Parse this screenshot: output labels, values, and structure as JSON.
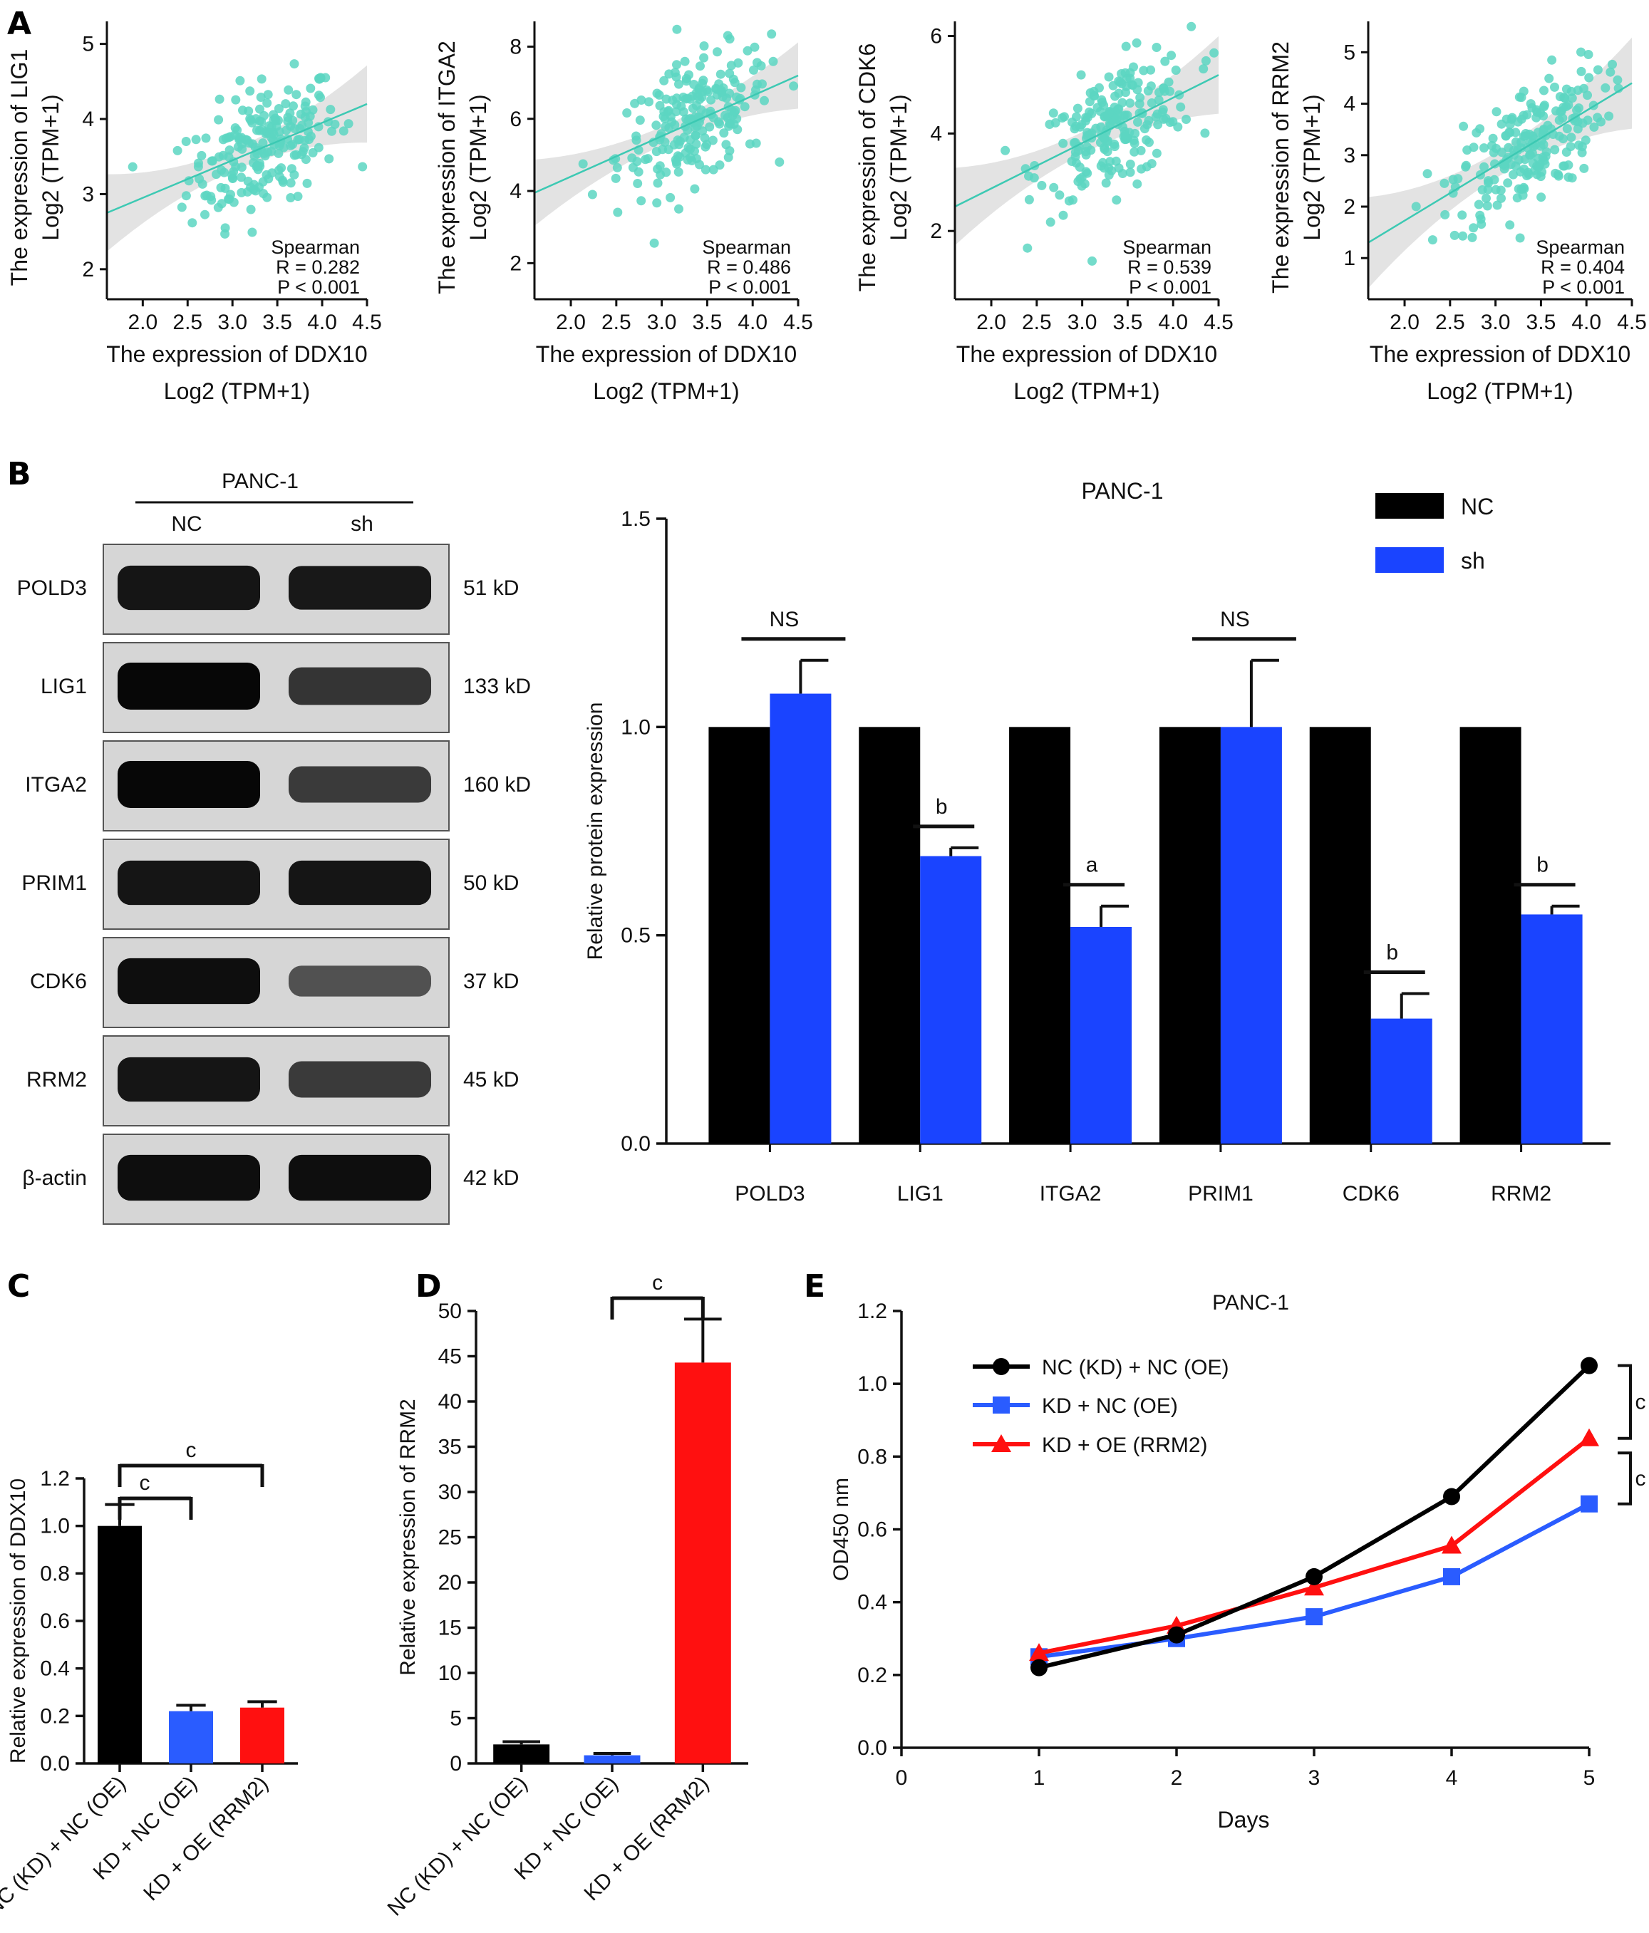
{
  "panels": {
    "a": "A",
    "b": "B",
    "c": "C",
    "d": "D",
    "e": "E"
  },
  "colors": {
    "scatter": "#5cd6c2",
    "regression": "#3cc9b3",
    "ci_band": "#d9d9d9",
    "nc": "#000000",
    "sh": "#1a44ff",
    "kd": "#2a5cff",
    "oe": "#ff1010"
  },
  "chart_data": [
    {
      "id": "A1",
      "type": "scatter",
      "xlabel": [
        "The expression of DDX10",
        "Log2 (TPM+1)"
      ],
      "ylabel": [
        "The expression of LIG1",
        "Log2 (TPM+1)"
      ],
      "xlim": [
        1.6,
        4.5
      ],
      "ylim": [
        1.6,
        5.3
      ],
      "xticks": [
        "2.0",
        "2.5",
        "3.0",
        "3.5",
        "4.0",
        "4.5"
      ],
      "yticks": [
        "2",
        "3",
        "4",
        "5"
      ],
      "fit": {
        "x": [
          1.6,
          4.5
        ],
        "y": [
          2.75,
          4.2
        ]
      },
      "stats": {
        "method": "Spearman",
        "r_label": "R = 0.282",
        "p_label": "P < 0.001"
      }
    },
    {
      "id": "A2",
      "type": "scatter",
      "xlabel": [
        "The expression of DDX10",
        "Log2 (TPM+1)"
      ],
      "ylabel": [
        "The expression of ITGA2",
        "Log2 (TPM+1)"
      ],
      "xlim": [
        1.6,
        4.5
      ],
      "ylim": [
        1.0,
        8.7
      ],
      "xticks": [
        "2.0",
        "2.5",
        "3.0",
        "3.5",
        "4.0",
        "4.5"
      ],
      "yticks": [
        "2",
        "4",
        "6",
        "8"
      ],
      "fit": {
        "x": [
          1.6,
          4.5
        ],
        "y": [
          3.95,
          7.2
        ]
      },
      "stats": {
        "method": "Spearman",
        "r_label": "R = 0.486",
        "p_label": "P < 0.001"
      }
    },
    {
      "id": "A3",
      "type": "scatter",
      "xlabel": [
        "The expression of DDX10",
        "Log2 (TPM+1)"
      ],
      "ylabel": [
        "The expression of CDK6",
        "Log2 (TPM+1)"
      ],
      "xlim": [
        1.6,
        4.5
      ],
      "ylim": [
        0.6,
        6.3
      ],
      "xticks": [
        "2.0",
        "2.5",
        "3.0",
        "3.5",
        "4.0",
        "4.5"
      ],
      "yticks": [
        "2",
        "4",
        "6"
      ],
      "fit": {
        "x": [
          1.6,
          4.5
        ],
        "y": [
          2.5,
          5.2
        ]
      },
      "stats": {
        "method": "Spearman",
        "r_label": "R = 0.539",
        "p_label": "P < 0.001"
      }
    },
    {
      "id": "A4",
      "type": "scatter",
      "xlabel": [
        "The expression of DDX10",
        "Log2 (TPM+1)"
      ],
      "ylabel": [
        "The expression of RRM2",
        "Log2 (TPM+1)"
      ],
      "xlim": [
        1.6,
        4.5
      ],
      "ylim": [
        0.2,
        5.6
      ],
      "xticks": [
        "2.0",
        "2.5",
        "3.0",
        "3.5",
        "4.0",
        "4.5"
      ],
      "yticks": [
        "1",
        "2",
        "3",
        "4",
        "5"
      ],
      "fit": {
        "x": [
          1.6,
          4.5
        ],
        "y": [
          1.3,
          4.4
        ]
      },
      "stats": {
        "method": "Spearman",
        "r_label": "R = 0.404",
        "p_label": "P < 0.001"
      }
    },
    {
      "id": "B-bar",
      "type": "bar",
      "title": "PANC-1",
      "ylabel": "Relative protein expression",
      "ylim": [
        0,
        1.5
      ],
      "yticks": [
        "0.0",
        "0.5",
        "1.0",
        "1.5"
      ],
      "categories": [
        "POLD3",
        "LIG1",
        "ITGA2",
        "PRIM1",
        "CDK6",
        "RRM2"
      ],
      "series": [
        {
          "name": "NC",
          "values": [
            1.0,
            1.0,
            1.0,
            1.0,
            1.0,
            1.0
          ]
        },
        {
          "name": "sh",
          "values": [
            1.08,
            0.69,
            0.52,
            1.0,
            0.3,
            0.55
          ],
          "errors": [
            0.08,
            0.02,
            0.05,
            0.16,
            0.06,
            0.02
          ]
        }
      ],
      "significance": [
        "NS",
        "b",
        "a",
        "NS",
        "b",
        "b"
      ],
      "legend_position": "top-right"
    },
    {
      "id": "C",
      "type": "bar",
      "ylabel": "Relative expression of DDX10",
      "ylim": [
        0,
        1.2
      ],
      "yticks": [
        "0.0",
        "0.2",
        "0.4",
        "0.6",
        "0.8",
        "1.0",
        "1.2"
      ],
      "categories": [
        "NC (KD) + NC (OE)",
        "KD + NC (OE)",
        "KD + OE (RRM2)"
      ],
      "values": [
        1.0,
        0.22,
        0.235
      ],
      "errors": [
        0.09,
        0.025,
        0.025
      ],
      "brackets": [
        {
          "from": 0,
          "to": 1,
          "label": "c"
        },
        {
          "from": 0,
          "to": 2,
          "label": "c"
        }
      ]
    },
    {
      "id": "D",
      "type": "bar",
      "ylabel": "Relative expression of RRM2",
      "ylim": [
        0,
        50
      ],
      "yticks": [
        "0",
        "5",
        "10",
        "15",
        "20",
        "25",
        "30",
        "35",
        "40",
        "45",
        "50"
      ],
      "categories": [
        "NC (KD) + NC (OE)",
        "KD + NC (OE)",
        "KD + OE (RRM2)"
      ],
      "values": [
        2.1,
        0.9,
        44.3
      ],
      "errors": [
        0.3,
        0.2,
        4.8
      ],
      "brackets": [
        {
          "from": 1,
          "to": 2,
          "label": "c"
        }
      ]
    },
    {
      "id": "E",
      "type": "line",
      "title": "PANC-1",
      "xlabel": "Days",
      "ylabel": "OD450 nm",
      "xlim": [
        0,
        5
      ],
      "ylim": [
        0,
        1.2
      ],
      "xticks": [
        "0",
        "1",
        "2",
        "3",
        "4",
        "5"
      ],
      "yticks": [
        "0.0",
        "0.2",
        "0.4",
        "0.6",
        "0.8",
        "1.0",
        "1.2"
      ],
      "x": [
        1,
        2,
        3,
        4,
        5
      ],
      "series": [
        {
          "name": "NC (KD) + NC (OE)",
          "values": [
            0.22,
            0.31,
            0.47,
            0.69,
            1.05
          ],
          "marker": "circle"
        },
        {
          "name": "KD + NC (OE)",
          "values": [
            0.25,
            0.3,
            0.36,
            0.47,
            0.67
          ],
          "marker": "square"
        },
        {
          "name": "KD + OE (RRM2)",
          "values": [
            0.26,
            0.335,
            0.44,
            0.555,
            0.85
          ],
          "marker": "triangle"
        }
      ],
      "brackets": [
        {
          "label": "c"
        },
        {
          "label": "c"
        }
      ],
      "legend_position": "top-left"
    }
  ],
  "western_blot": {
    "cell_line": "PANC-1",
    "lanes": [
      "NC",
      "sh"
    ],
    "rows": [
      {
        "protein": "POLD3",
        "size": "51 kD",
        "intensity": [
          0.85,
          0.82
        ]
      },
      {
        "protein": "LIG1",
        "size": "133 kD",
        "intensity": [
          0.95,
          0.6
        ]
      },
      {
        "protein": "ITGA2",
        "size": "160 kD",
        "intensity": [
          0.95,
          0.55
        ]
      },
      {
        "protein": "PRIM1",
        "size": "50 kD",
        "intensity": [
          0.85,
          0.85
        ]
      },
      {
        "protein": "CDK6",
        "size": "37 kD",
        "intensity": [
          0.9,
          0.35
        ]
      },
      {
        "protein": "RRM2",
        "size": "45 kD",
        "intensity": [
          0.85,
          0.55
        ]
      },
      {
        "protein": "β-actin",
        "size": "42 kD",
        "intensity": [
          0.9,
          0.9
        ]
      }
    ]
  }
}
